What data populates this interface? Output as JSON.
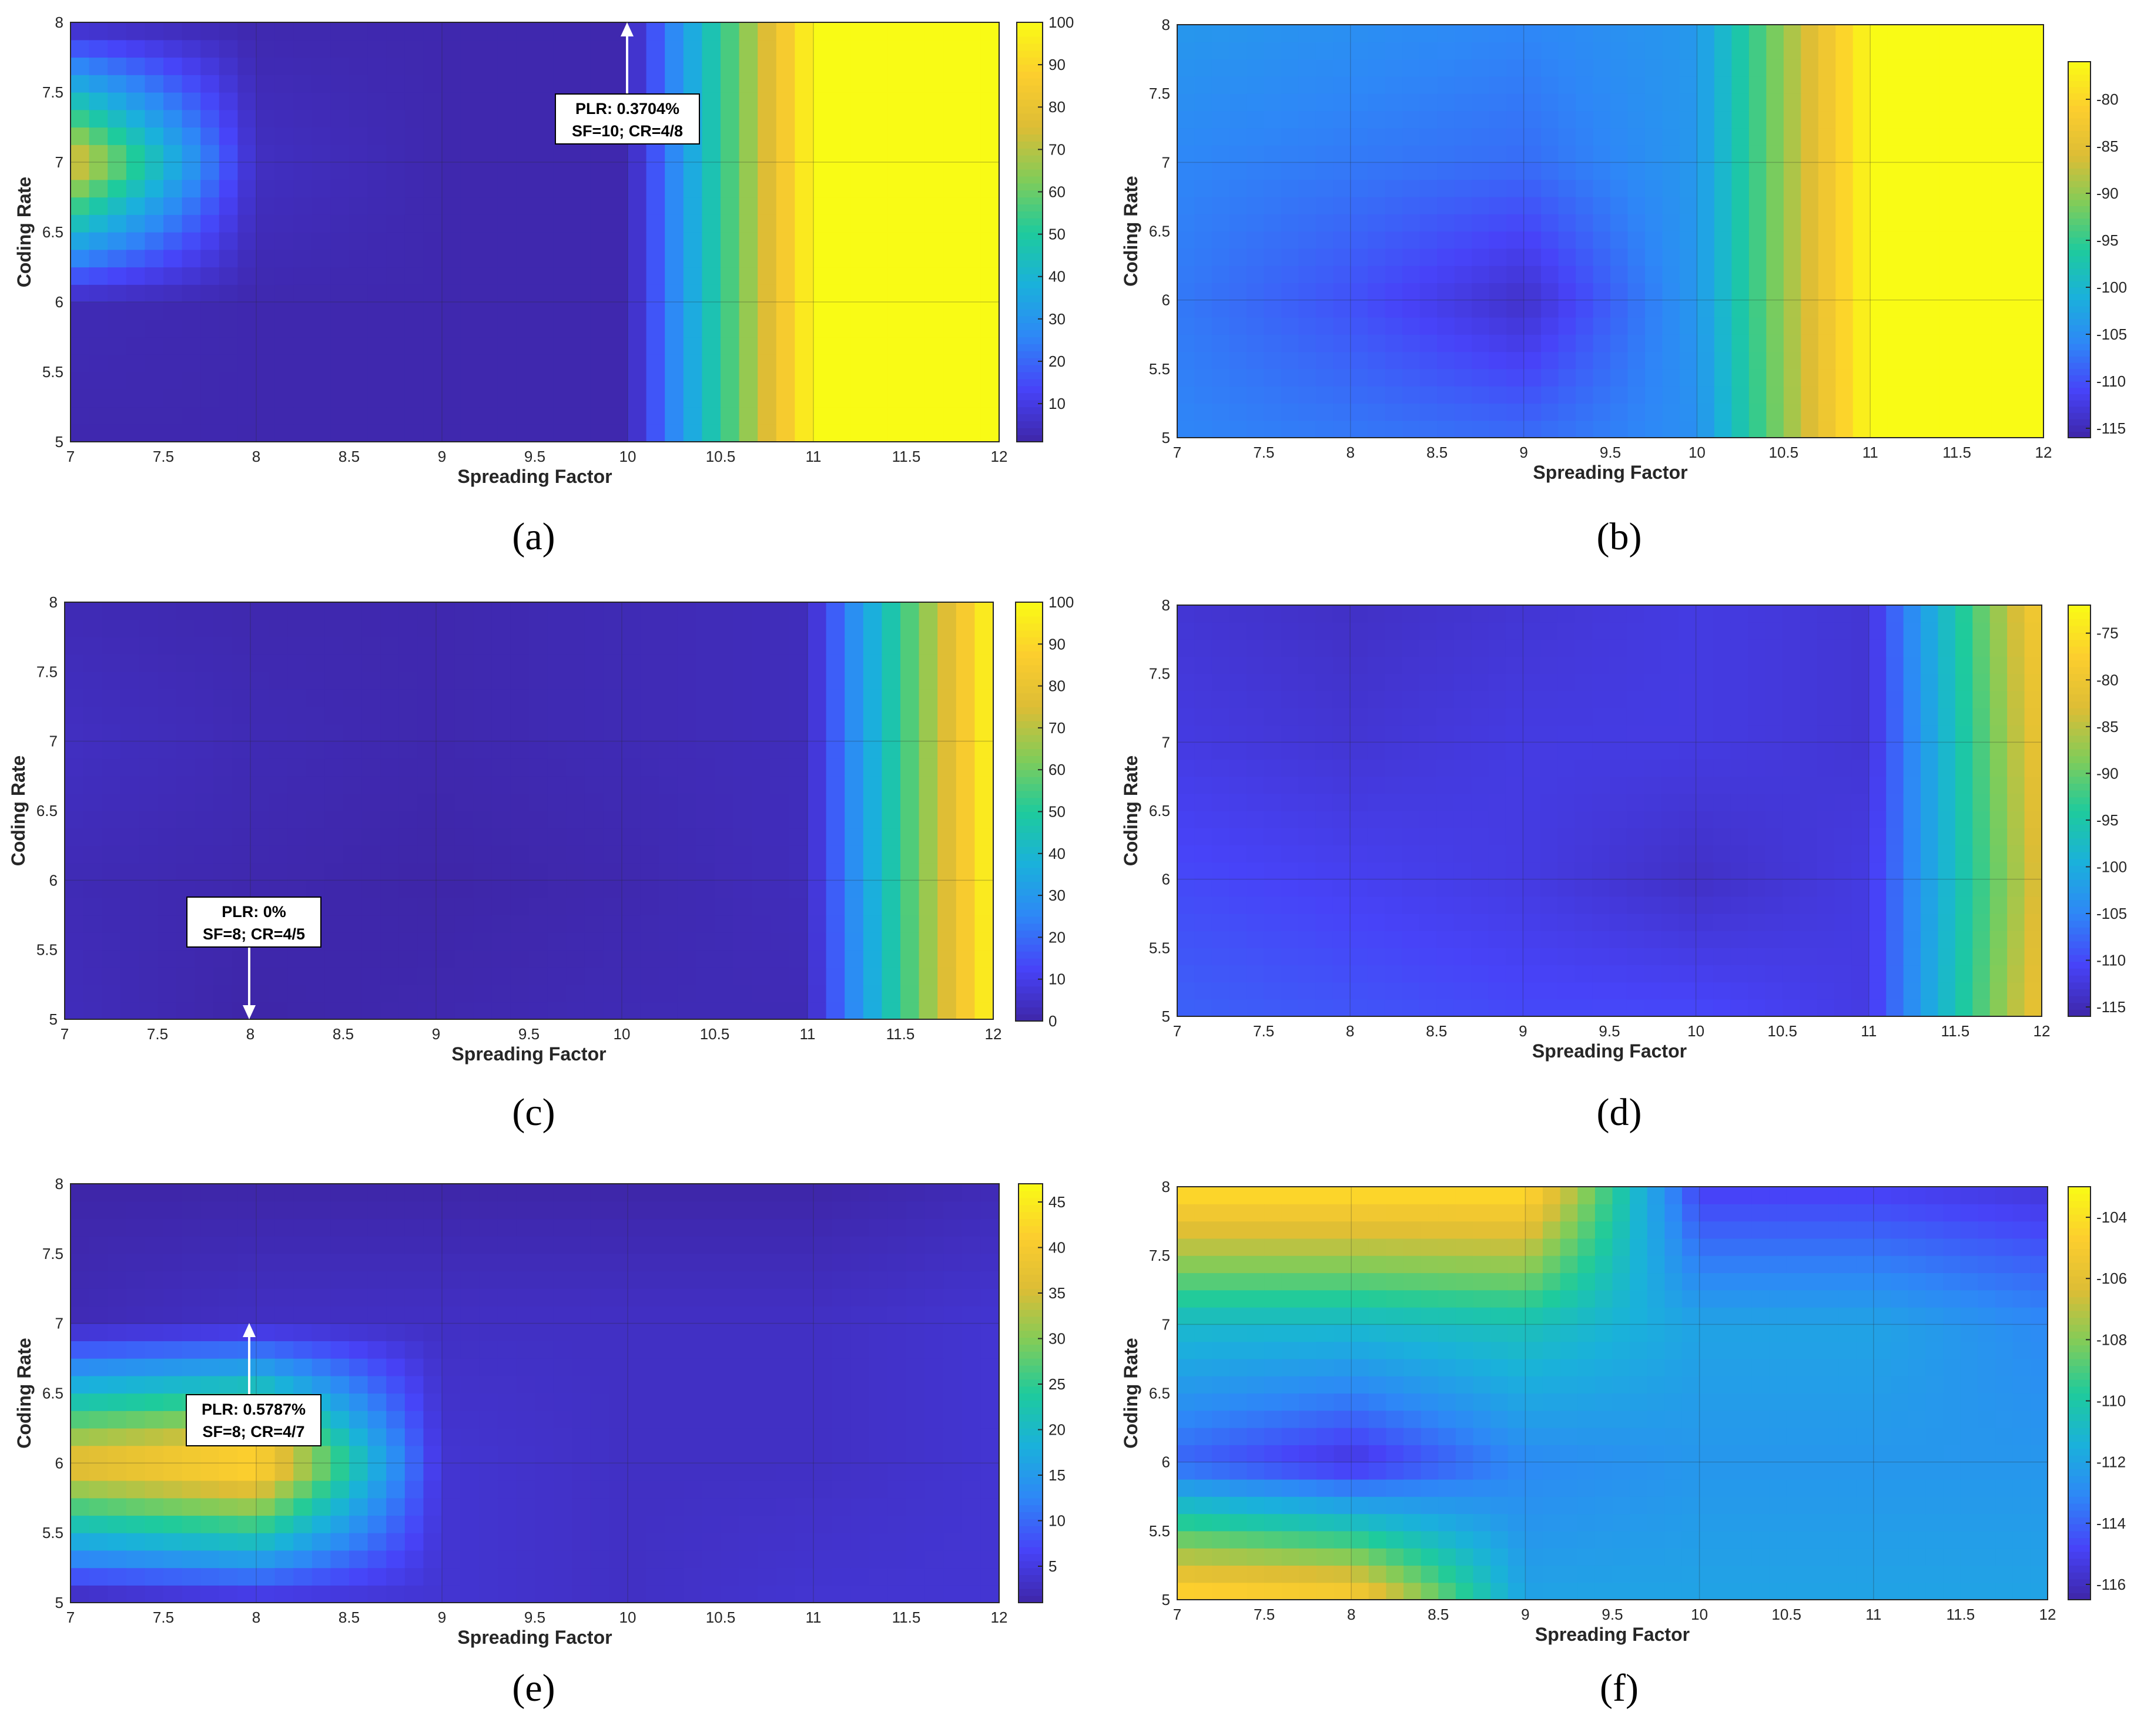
{
  "figure": {
    "panels": [
      {
        "id": "a",
        "label": "(a)",
        "xlabel": "Spreading Factor",
        "ylabel": "Coding Rate",
        "colorbar_ticks": [
          "10",
          "20",
          "30",
          "40",
          "50",
          "60",
          "70",
          "80",
          "90",
          "100"
        ],
        "annotation": {
          "line1": "PLR: 0.3704%",
          "line2": "SF=10; CR=4/8"
        }
      },
      {
        "id": "b",
        "label": "(b)",
        "xlabel": "Spreading Factor",
        "ylabel": "Coding Rate",
        "colorbar_ticks": [
          "-115",
          "-110",
          "-105",
          "-100",
          "-95",
          "-90",
          "-85",
          "-80"
        ]
      },
      {
        "id": "c",
        "label": "(c)",
        "xlabel": "Spreading Factor",
        "ylabel": "Coding Rate",
        "colorbar_ticks": [
          "0",
          "10",
          "20",
          "30",
          "40",
          "50",
          "60",
          "70",
          "80",
          "90",
          "100"
        ],
        "annotation": {
          "line1": "PLR: 0%",
          "line2": "SF=8; CR=4/5"
        }
      },
      {
        "id": "d",
        "label": "(d)",
        "xlabel": "Spreading Factor",
        "ylabel": "Coding Rate",
        "colorbar_ticks": [
          "-115",
          "-110",
          "-105",
          "-100",
          "-95",
          "-90",
          "-85",
          "-80",
          "-75"
        ]
      },
      {
        "id": "e",
        "label": "(e)",
        "xlabel": "Spreading Factor",
        "ylabel": "Coding Rate",
        "colorbar_ticks": [
          "5",
          "10",
          "15",
          "20",
          "25",
          "30",
          "35",
          "40",
          "45"
        ],
        "annotation": {
          "line1": "PLR: 0.5787%",
          "line2": "SF=8; CR=4/7"
        }
      },
      {
        "id": "f",
        "label": "(f)",
        "xlabel": "Spreading Factor",
        "ylabel": "Coding Rate",
        "colorbar_ticks": [
          "-116",
          "-114",
          "-112",
          "-110",
          "-108",
          "-106",
          "-104"
        ]
      }
    ],
    "x_ticks": [
      "7",
      "7.5",
      "8",
      "8.5",
      "9",
      "9.5",
      "10",
      "10.5",
      "11",
      "11.5",
      "12"
    ],
    "y_ticks": [
      "5",
      "5.5",
      "6",
      "6.5",
      "7",
      "7.5",
      "8"
    ],
    "colormap": [
      "#3e26a8",
      "#4743f8",
      "#2e87f7",
      "#1ab1db",
      "#1ecb9c",
      "#81cc59",
      "#ddbd35",
      "#fcce2e",
      "#f9fb15"
    ]
  },
  "chart_data": [
    {
      "type": "heatmap",
      "panel": "a",
      "xlabel": "Spreading Factor",
      "ylabel": "Coding Rate",
      "xlim": [
        7,
        12
      ],
      "ylim": [
        5,
        8
      ],
      "clim": [
        1,
        100
      ],
      "x": [
        7,
        8,
        9,
        10,
        11,
        12
      ],
      "y": [
        5,
        6,
        7,
        8
      ],
      "z": [
        [
          2,
          2,
          2,
          2,
          100,
          100
        ],
        [
          3,
          2,
          2,
          2,
          100,
          100
        ],
        [
          80,
          5,
          2,
          2,
          100,
          100
        ],
        [
          3,
          2,
          2,
          2,
          100,
          100
        ]
      ],
      "annotation": {
        "text": "PLR: 0.3704%\nSF=10; CR=4/8",
        "x": 10,
        "y": 8,
        "value": 0.3704
      }
    },
    {
      "type": "heatmap",
      "panel": "b",
      "xlabel": "Spreading Factor",
      "ylabel": "Coding Rate",
      "xlim": [
        7,
        12
      ],
      "ylim": [
        5,
        8
      ],
      "clim": [
        -116,
        -76
      ],
      "x": [
        7,
        8,
        9,
        10,
        11,
        12
      ],
      "y": [
        5,
        6,
        7,
        8
      ],
      "z": [
        [
          -106,
          -107,
          -108,
          -105,
          -76,
          -76
        ],
        [
          -107,
          -110,
          -114,
          -104,
          -76,
          -76
        ],
        [
          -106,
          -107,
          -108,
          -104,
          -76,
          -76
        ],
        [
          -104,
          -105,
          -106,
          -104,
          -76,
          -76
        ]
      ]
    },
    {
      "type": "heatmap",
      "panel": "c",
      "xlabel": "Spreading Factor",
      "ylabel": "Coding Rate",
      "xlim": [
        7,
        12
      ],
      "ylim": [
        5,
        8
      ],
      "clim": [
        0,
        100
      ],
      "x": [
        7,
        8,
        9,
        10,
        11,
        12
      ],
      "y": [
        5,
        6,
        7,
        8
      ],
      "z": [
        [
          3,
          0,
          1,
          2,
          2,
          100
        ],
        [
          2,
          1,
          0,
          1,
          3,
          100
        ],
        [
          4,
          2,
          1,
          2,
          3,
          100
        ],
        [
          2,
          1,
          1,
          2,
          3,
          100
        ]
      ],
      "annotation": {
        "text": "PLR: 0%\nSF=8; CR=4/5",
        "x": 8,
        "y": 5,
        "value": 0
      }
    },
    {
      "type": "heatmap",
      "panel": "d",
      "xlabel": "Spreading Factor",
      "ylabel": "Coding Rate",
      "xlim": [
        7,
        12
      ],
      "ylim": [
        5,
        8
      ],
      "clim": [
        -116,
        -72
      ],
      "x": [
        7,
        8,
        9,
        10,
        11,
        12
      ],
      "y": [
        5,
        6,
        7,
        8
      ],
      "z": [
        [
          -108,
          -109,
          -110,
          -110,
          -112,
          -80
        ],
        [
          -110,
          -111,
          -112,
          -114,
          -112,
          -82
        ],
        [
          -112,
          -113,
          -112,
          -112,
          -113,
          -80
        ],
        [
          -113,
          -114,
          -113,
          -112,
          -113,
          -78
        ]
      ]
    },
    {
      "type": "heatmap",
      "panel": "e",
      "xlabel": "Spreading Factor",
      "ylabel": "Coding Rate",
      "xlim": [
        7,
        12
      ],
      "ylim": [
        5,
        8
      ],
      "clim": [
        1,
        47
      ],
      "x": [
        7,
        8,
        9,
        10,
        11,
        12
      ],
      "y": [
        5,
        6,
        7,
        8
      ],
      "z": [
        [
          1,
          3,
          4,
          3,
          4,
          4
        ],
        [
          38,
          44,
          4,
          3,
          3,
          4
        ],
        [
          2,
          3,
          3,
          3,
          3,
          4
        ],
        [
          1,
          1,
          1,
          1,
          1,
          2
        ]
      ],
      "annotation": {
        "text": "PLR: 0.5787%\nSF=8; CR=4/7",
        "x": 8,
        "y": 7,
        "value": 0.5787
      }
    },
    {
      "type": "heatmap",
      "panel": "f",
      "xlabel": "Spreading Factor",
      "ylabel": "Coding Rate",
      "xlim": [
        7,
        12
      ],
      "ylim": [
        5,
        8
      ],
      "clim": [
        -116.5,
        -103
      ],
      "x": [
        7,
        8,
        9,
        10,
        11,
        12
      ],
      "y": [
        5,
        6,
        7,
        8
      ],
      "z": [
        [
          -104,
          -104.5,
          -112,
          -112,
          -112,
          -112
        ],
        [
          -114,
          -115.5,
          -113,
          -112.5,
          -112.5,
          -112.5
        ],
        [
          -111,
          -111,
          -110.5,
          -112,
          -112,
          -113
        ],
        [
          -104,
          -104,
          -104,
          -115,
          -115,
          -115.5
        ]
      ]
    }
  ]
}
